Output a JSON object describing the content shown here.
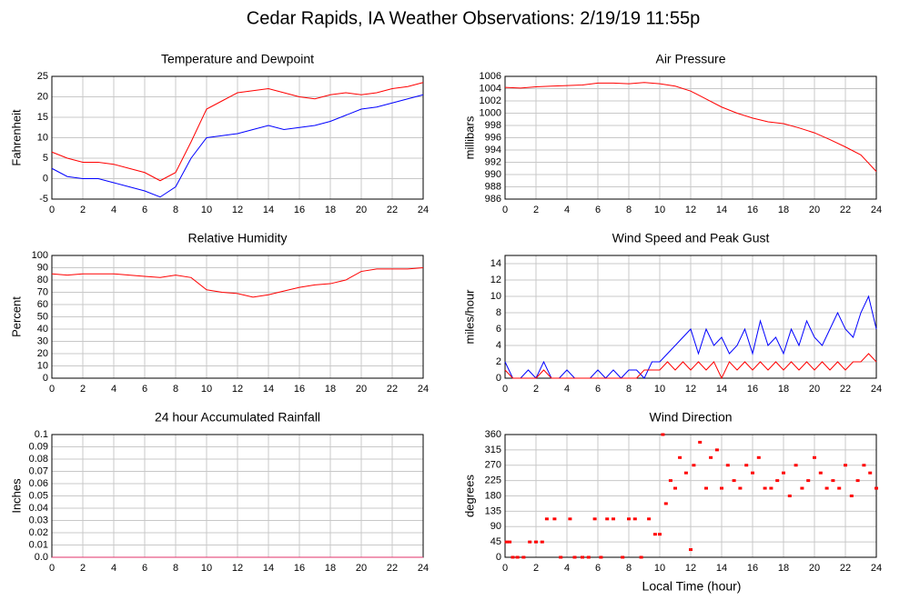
{
  "title": "Cedar Rapids, IA Weather Observations: 2/19/19 11:55p",
  "x_axis_label": "Local Time (hour)",
  "chart_data": [
    {
      "type": "line",
      "title": "Temperature and Dewpoint",
      "ylabel": "Fahrenheit",
      "x": [
        0,
        1,
        2,
        3,
        4,
        5,
        6,
        7,
        8,
        9,
        10,
        11,
        12,
        13,
        14,
        15,
        16,
        17,
        18,
        19,
        20,
        21,
        22,
        23,
        24
      ],
      "series": [
        {
          "color": "#ff0000",
          "values": [
            6.5,
            5,
            4,
            4,
            3.5,
            2.5,
            1.5,
            -0.5,
            1.5,
            9,
            17,
            19,
            21,
            21.5,
            22,
            21,
            20,
            19.5,
            20.5,
            21,
            20.5,
            21,
            22,
            22.5,
            23.5
          ]
        },
        {
          "color": "#0000ff",
          "values": [
            2.5,
            0.5,
            0,
            0,
            -1,
            -2,
            -3,
            -4.5,
            -2,
            5,
            10,
            10.5,
            11,
            12,
            13,
            12,
            12.5,
            13,
            14,
            15.5,
            17,
            17.5,
            18.5,
            19.5,
            20.5
          ]
        }
      ],
      "xlim": [
        0,
        24
      ],
      "xticks": [
        0,
        2,
        4,
        6,
        8,
        10,
        12,
        14,
        16,
        18,
        20,
        22,
        24
      ],
      "ylim": [
        -5,
        25
      ],
      "yticks": [
        -5,
        0,
        5,
        10,
        15,
        20,
        25
      ],
      "grid": true
    },
    {
      "type": "line",
      "title": "Air Pressure",
      "ylabel": "millibars",
      "x": [
        0,
        1,
        2,
        3,
        4,
        5,
        6,
        7,
        8,
        9,
        10,
        11,
        12,
        13,
        14,
        15,
        16,
        17,
        18,
        19,
        20,
        21,
        22,
        23,
        24
      ],
      "series": [
        {
          "color": "#ff0000",
          "values": [
            1004.2,
            1004.1,
            1004.3,
            1004.4,
            1004.5,
            1004.6,
            1004.9,
            1004.9,
            1004.8,
            1005,
            1004.8,
            1004.4,
            1003.6,
            1002.3,
            1001,
            1000,
            999.2,
            998.6,
            998.3,
            997.6,
            996.8,
            995.7,
            994.5,
            993.2,
            990.5
          ]
        }
      ],
      "xlim": [
        0,
        24
      ],
      "xticks": [
        0,
        2,
        4,
        6,
        8,
        10,
        12,
        14,
        16,
        18,
        20,
        22,
        24
      ],
      "ylim": [
        986,
        1006
      ],
      "yticks": [
        986,
        988,
        990,
        992,
        994,
        996,
        998,
        1000,
        1002,
        1004,
        1006
      ],
      "grid": true
    },
    {
      "type": "line",
      "title": "Relative Humidity",
      "ylabel": "Percent",
      "x": [
        0,
        1,
        2,
        3,
        4,
        5,
        6,
        7,
        8,
        9,
        10,
        11,
        12,
        13,
        14,
        15,
        16,
        17,
        18,
        19,
        20,
        21,
        22,
        23,
        24
      ],
      "series": [
        {
          "color": "#ff0000",
          "values": [
            85,
            84,
            85,
            85,
            85,
            84,
            83,
            82,
            84,
            82,
            72,
            70,
            69,
            66,
            68,
            71,
            74,
            76,
            77,
            80,
            87,
            89,
            89,
            89,
            90
          ]
        }
      ],
      "xlim": [
        0,
        24
      ],
      "xticks": [
        0,
        2,
        4,
        6,
        8,
        10,
        12,
        14,
        16,
        18,
        20,
        22,
        24
      ],
      "ylim": [
        0,
        100
      ],
      "yticks": [
        0,
        10,
        20,
        30,
        40,
        50,
        60,
        70,
        80,
        90,
        100
      ],
      "grid": true
    },
    {
      "type": "line",
      "title": "Wind Speed and Peak Gust",
      "ylabel": "miles/hour",
      "x": [
        0,
        0.5,
        1,
        1.5,
        2,
        2.5,
        3,
        3.5,
        4,
        4.5,
        5,
        5.5,
        6,
        6.5,
        7,
        7.5,
        8,
        8.5,
        9,
        9.5,
        10,
        10.5,
        11,
        11.5,
        12,
        12.5,
        13,
        13.5,
        14,
        14.5,
        15,
        15.5,
        16,
        16.5,
        17,
        17.5,
        18,
        18.5,
        19,
        19.5,
        20,
        20.5,
        21,
        21.5,
        22,
        22.5,
        23,
        23.5,
        24
      ],
      "series": [
        {
          "color": "#0000ff",
          "values": [
            2,
            0,
            0,
            1,
            0,
            2,
            0,
            0,
            1,
            0,
            0,
            0,
            1,
            0,
            1,
            0,
            1,
            1,
            0,
            2,
            2,
            3,
            4,
            5,
            6,
            3,
            6,
            4,
            5,
            3,
            4,
            6,
            3,
            7,
            4,
            5,
            3,
            6,
            4,
            7,
            5,
            4,
            6,
            8,
            6,
            5,
            8,
            10,
            6
          ]
        },
        {
          "color": "#ff0000",
          "values": [
            1,
            0,
            0,
            0,
            0,
            1,
            0,
            0,
            0,
            0,
            0,
            0,
            0,
            0,
            0,
            0,
            0,
            0,
            1,
            1,
            1,
            2,
            1,
            2,
            1,
            2,
            1,
            2,
            0,
            2,
            1,
            2,
            1,
            2,
            1,
            2,
            1,
            2,
            1,
            2,
            1,
            2,
            1,
            2,
            1,
            2,
            2,
            3,
            2
          ]
        }
      ],
      "xlim": [
        0,
        24
      ],
      "xticks": [
        0,
        2,
        4,
        6,
        8,
        10,
        12,
        14,
        16,
        18,
        20,
        22,
        24
      ],
      "ylim": [
        0,
        15
      ],
      "yticks": [
        0,
        2,
        4,
        6,
        8,
        10,
        12,
        14
      ],
      "grid": true
    },
    {
      "type": "line",
      "title": "24 hour Accumulated Rainfall",
      "ylabel": "Inches",
      "x": [
        0,
        24
      ],
      "series": [
        {
          "color": "#e0306a",
          "values": [
            0,
            0
          ]
        }
      ],
      "xlim": [
        0,
        24
      ],
      "xticks": [
        0,
        2,
        4,
        6,
        8,
        10,
        12,
        14,
        16,
        18,
        20,
        22,
        24
      ],
      "ylim": [
        0,
        0.1
      ],
      "yticks": [
        {
          "value": 0,
          "label": "0.0"
        },
        0.01,
        0.02,
        0.03,
        0.04,
        0.05,
        0.06,
        0.07,
        0.08,
        0.09,
        0.1
      ],
      "grid": true
    },
    {
      "type": "scatter",
      "title": "Wind Direction",
      "ylabel": "degrees",
      "x": [
        0.1,
        0.3,
        0.5,
        0.8,
        1.2,
        1.6,
        2.0,
        2.4,
        2.7,
        3.2,
        3.6,
        4.2,
        4.5,
        5.0,
        5.4,
        5.8,
        6.2,
        6.6,
        7.0,
        7.6,
        8.0,
        8.4,
        8.8,
        9.3,
        9.7,
        10.0,
        10.2,
        10.4,
        10.7,
        11.0,
        11.3,
        11.7,
        12.0,
        12.2,
        12.6,
        13.0,
        13.3,
        13.7,
        14.0,
        14.4,
        14.8,
        15.2,
        15.6,
        16.0,
        16.4,
        16.8,
        17.2,
        17.6,
        18.0,
        18.4,
        18.8,
        19.2,
        19.6,
        20.0,
        20.4,
        20.8,
        21.2,
        21.6,
        22.0,
        22.4,
        22.8,
        23.2,
        23.6,
        24.0
      ],
      "series": [
        {
          "color": "#ff0000",
          "values": [
            45,
            45,
            0,
            0,
            0,
            45,
            45,
            45,
            112.5,
            112.5,
            0,
            112.5,
            0,
            0,
            0,
            112.5,
            0,
            112.5,
            112.5,
            0,
            112.5,
            112.5,
            0,
            112.5,
            67.5,
            67.5,
            360,
            157.5,
            225,
            202.5,
            292.5,
            247.5,
            22.5,
            270,
            337.5,
            202.5,
            292.5,
            315,
            202.5,
            270,
            225,
            202.5,
            270,
            247.5,
            292.5,
            202.5,
            202.5,
            225,
            247.5,
            180,
            270,
            202.5,
            225,
            292.5,
            247.5,
            202.5,
            225,
            202.5,
            270,
            180,
            225,
            270,
            247.5,
            202.5
          ]
        }
      ],
      "xlim": [
        0,
        24
      ],
      "xticks": [
        0,
        2,
        4,
        6,
        8,
        10,
        12,
        14,
        16,
        18,
        20,
        22,
        24
      ],
      "ylim": [
        0,
        360
      ],
      "yticks": [
        0,
        45,
        90,
        135,
        180,
        225,
        270,
        315,
        360
      ],
      "grid": true
    }
  ]
}
